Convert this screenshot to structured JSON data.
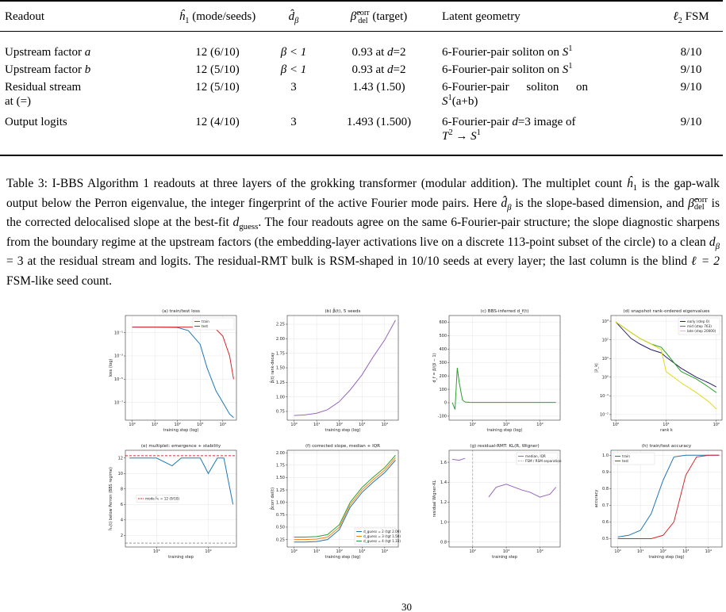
{
  "table": {
    "header": [
      "Readout",
      [
        "ĥ",
        "1",
        " (mode/seeds)"
      ],
      [
        "d̂",
        "β"
      ],
      [
        "β̂",
        "corr",
        "del",
        " (target)"
      ],
      "Latent geometry",
      [
        "ℓ",
        "2",
        " FSM"
      ]
    ],
    "rows": [
      [
        [
          "Upstream factor ",
          "a"
        ],
        "12 (6/10)",
        "β < 1",
        [
          "0.93 at ",
          "d",
          "=2"
        ],
        [
          "6-Fourier-pair soliton on ",
          "S",
          "1"
        ],
        "8/10"
      ],
      [
        [
          "Upstream factor ",
          "b"
        ],
        "12 (5/10)",
        "β < 1",
        [
          "0.93 at ",
          "d",
          "=2"
        ],
        [
          "6-Fourier-pair soliton on ",
          "S",
          "1"
        ],
        "9/10"
      ],
      [
        [
          "Residual stream",
          "at (=)"
        ],
        "12 (5/10)",
        "3",
        "1.43 (1.50)",
        [
          "6-Fourier-pair soliton on",
          "S",
          "1",
          "(a+b)"
        ],
        "9/10"
      ],
      [
        [
          "Output logits"
        ],
        "12 (4/10)",
        "3",
        "1.493 (1.500)",
        [
          "6-Fourier-pair ",
          "d",
          "=3 image of",
          "T",
          "2",
          " → ",
          "S",
          "1"
        ],
        "9/10"
      ]
    ]
  },
  "caption": [
    "Table 3: I-BBS Algorithm 1 readouts at three layers of the grokking transformer (modular addition). The multiplet count ",
    "ĥ",
    "1",
    " is the gap-walk output below the Perron eigenvalue, the integer fingerprint of the active Fourier mode pairs. Here ",
    "d̂",
    "β",
    " is the slope-based dimension, and ",
    "β̂",
    "corr",
    "del",
    " is the corrected delocalised slope at the best-fit ",
    "d",
    "guess",
    ". The four readouts agree on the same 6-Fourier-pair structure; the slope diagnostic sharpens from the boundary regime at the upstream factors (the embedding-layer activations live on a discrete 113-point subset of the circle) to a clean ",
    "d",
    "β",
    " = 3 at the residual stream and logits. The residual-RMT bulk is RSM-shaped in 10/10 seeds at every layer; the last column is the blind ",
    "ℓ = 2",
    " FSM-like seed count."
  ],
  "figure": {
    "panels": [
      {
        "title": "(a) train/test loss",
        "xlabel": "training step (log)",
        "ylabel": "loss (log)",
        "xlog": true,
        "ylog": true,
        "xlim": [
          0.5,
          40000
        ],
        "ylim": [
          3e-09,
          3
        ],
        "xticks": [
          {
            "value": 1,
            "label": "10⁰"
          },
          {
            "value": 10,
            "label": "10¹"
          },
          {
            "value": 100,
            "label": "10²"
          },
          {
            "value": 1000,
            "label": "10³"
          },
          {
            "value": 10000,
            "label": "10⁴"
          }
        ],
        "yticks": [
          {
            "value": 1e-07,
            "label": "10⁻⁷"
          },
          {
            "value": 1e-05,
            "label": "10⁻⁵"
          },
          {
            "value": 0.001,
            "label": "10⁻³"
          },
          {
            "value": 0.1,
            "label": "10⁻¹"
          }
        ],
        "legend": "upper right",
        "series": [
          {
            "name": "train",
            "color": "#1f77b4",
            "x": [
              1,
              10,
              100,
              300,
              1000,
              2000,
              5000,
              10000,
              20000,
              30000
            ],
            "values": [
              0.3,
              0.3,
              0.28,
              0.15,
              0.01,
              0.0001,
              1e-06,
              1e-07,
              1e-08,
              5e-09
            ]
          },
          {
            "name": "test",
            "color": "#d62728",
            "x": [
              1,
              10,
              100,
              300,
              1000,
              2000,
              5000,
              10000,
              20000,
              30000
            ],
            "values": [
              0.3,
              0.3,
              0.3,
              0.3,
              0.3,
              0.28,
              0.2,
              0.05,
              0.001,
              1e-05
            ]
          }
        ]
      },
      {
        "title": "(b) β̂(t), 5 seeds",
        "xlabel": "training step (log)",
        "ylabel": "β̂(t) rank-decay",
        "xlog": true,
        "ylog": false,
        "xlim": [
          0.5,
          40000
        ],
        "ylim": [
          0.6,
          2.4
        ],
        "xticks": [
          {
            "value": 1,
            "label": "10⁰"
          },
          {
            "value": 10,
            "label": "10¹"
          },
          {
            "value": 100,
            "label": "10²"
          },
          {
            "value": 1000,
            "label": "10³"
          },
          {
            "value": 10000,
            "label": "10⁴"
          }
        ],
        "yticks": [
          0.75,
          {
            "value": 1,
            "label": "1.00"
          },
          1.25,
          {
            "value": 1.5,
            "label": "1.50"
          },
          1.75,
          {
            "value": 2,
            "label": "2.00"
          },
          2.25
        ],
        "series": [
          {
            "color": "#9467bd",
            "x": [
              1,
              3,
              10,
              30,
              100,
              300,
              1000,
              3000,
              10000,
              30000
            ],
            "values": [
              0.68,
              0.69,
              0.72,
              0.78,
              0.92,
              1.12,
              1.38,
              1.68,
              1.98,
              2.32
            ]
          }
        ]
      },
      {
        "title": "(c) BBS-inferred d_f(t)",
        "xlabel": "training step (log)",
        "ylabel": "d_f = β/(β − 1)",
        "xlog": true,
        "ylog": false,
        "xlim": [
          20,
          40000
        ],
        "ylim": [
          -130,
          650
        ],
        "xticks": [
          {
            "value": 100,
            "label": "10²"
          },
          {
            "value": 1000,
            "label": "10³"
          },
          {
            "value": 10000,
            "label": "10⁴"
          }
        ],
        "yticks": [
          -100,
          0,
          100,
          200,
          300,
          400,
          500,
          600
        ],
        "series": [
          {
            "color": "#2ca02c",
            "x": [
              25,
              30,
              35,
              40,
              50,
              60,
              80,
              100,
              300,
              1000,
              10000,
              30000
            ],
            "values": [
              0,
              -50,
              260,
              150,
              20,
              5,
              3,
              2,
              2,
              2,
              2,
              2
            ]
          }
        ]
      },
      {
        "title": "(d) snapshot rank-ordered eigenvalues",
        "xlabel": "rank k",
        "ylabel": "|λ_k|",
        "xlog": true,
        "ylog": true,
        "xlim": [
          0.8,
          130
        ],
        "ylim": [
          0.005,
          2000
        ],
        "xticks": [
          {
            "value": 1,
            "label": "10⁰"
          },
          {
            "value": 10,
            "label": "10¹"
          },
          {
            "value": 100,
            "label": "10²"
          }
        ],
        "yticks": [
          {
            "value": 0.01,
            "label": "10⁻²"
          },
          {
            "value": 0.1,
            "label": "10⁻¹"
          },
          {
            "value": 1,
            "label": "10⁰"
          },
          {
            "value": 10,
            "label": "10¹"
          },
          {
            "value": 100,
            "label": "10²"
          },
          {
            "value": 1000,
            "label": "10³"
          }
        ],
        "legend": "upper right",
        "series": [
          {
            "name": "early (step 0)",
            "color": "#2b1f6b",
            "x": [
              1,
              2,
              3,
              5,
              8,
              10,
              20,
              40,
              70,
              100
            ],
            "values": [
              900,
              120,
              60,
              30,
              20,
              12,
              3,
              1,
              0.5,
              0.3
            ]
          },
          {
            "name": "mid (step 763)",
            "color": "#2ca02c",
            "x": [
              1,
              2,
              3,
              5,
              8,
              10,
              20,
              40,
              70,
              100
            ],
            "values": [
              900,
              250,
              120,
              60,
              40,
              20,
              2,
              0.8,
              0.3,
              0.15
            ]
          },
          {
            "name": "late (step 20000)",
            "color": "#e5d81a",
            "x": [
              1,
              2,
              3,
              5,
              8,
              10,
              20,
              40,
              70,
              100
            ],
            "values": [
              900,
              250,
              120,
              60,
              30,
              2,
              0.5,
              0.15,
              0.05,
              0.02
            ]
          }
        ]
      },
      {
        "title": "(e) multiplet: emergence + stability",
        "xlabel": "training step",
        "ylabel": "ĥ₁(t) below Perron (BBS regime)",
        "xlog": true,
        "ylog": false,
        "xlim": [
          250,
          35000
        ],
        "ylim": [
          0.5,
          13
        ],
        "xticks": [
          {
            "value": 1000,
            "label": "10³"
          },
          {
            "value": 10000,
            "label": "10⁴"
          }
        ],
        "yticks": [
          2,
          4,
          6,
          8,
          10,
          12
        ],
        "legend": "center left",
        "series": [
          {
            "color": "#1f77b4",
            "x": [
              300,
              1000,
              2000,
              3000,
              5000,
              7000,
              10000,
              15000,
              20000,
              30000
            ],
            "values": [
              12,
              12,
              11,
              12,
              12,
              12,
              10,
              12,
              12,
              6
            ]
          },
          {
            "name": "mode ĥ₁ = 12 (9/10)",
            "color": "#d62728",
            "dash": true,
            "x": [
              250,
              35000
            ],
            "values": [
              12.3,
              12.3
            ]
          },
          {
            "color": "#999999",
            "dash": true,
            "x": [
              250,
              35000
            ],
            "values": [
              1,
              1
            ]
          }
        ]
      },
      {
        "title": "(f) corrected slope, median + IQR",
        "xlabel": "training step (log)",
        "ylabel": "β̂corr del(t)",
        "xlog": true,
        "ylog": false,
        "xlim": [
          0.5,
          40000
        ],
        "ylim": [
          0.1,
          2.05
        ],
        "xticks": [
          {
            "value": 1,
            "label": "10⁰"
          },
          {
            "value": 10,
            "label": "10¹"
          },
          {
            "value": 100,
            "label": "10²"
          },
          {
            "value": 1000,
            "label": "10³"
          },
          {
            "value": 10000,
            "label": "10⁴"
          }
        ],
        "yticks": [
          0.25,
          {
            "value": 0.5,
            "label": "0.50"
          },
          0.75,
          {
            "value": 1,
            "label": "1.00"
          },
          1.25,
          {
            "value": 1.5,
            "label": "1.50"
          },
          1.75,
          {
            "value": 2,
            "label": "2.00"
          }
        ],
        "legend": "lower right",
        "series": [
          {
            "name": "d_guess = 2 (tgt 2.00)",
            "color": "#1f77b4",
            "x": [
              1,
              3,
              10,
              30,
              100,
              300,
              1000,
              3000,
              10000,
              30000
            ],
            "values": [
              0.2,
              0.2,
              0.21,
              0.25,
              0.45,
              0.9,
              1.2,
              1.4,
              1.6,
              1.85
            ]
          },
          {
            "name": "d_guess = 3 (tgt 1.50)",
            "color": "#ff7f0e",
            "x": [
              1,
              3,
              10,
              30,
              100,
              300,
              1000,
              3000,
              10000,
              30000
            ],
            "values": [
              0.25,
              0.25,
              0.26,
              0.3,
              0.5,
              0.95,
              1.25,
              1.45,
              1.65,
              1.9
            ]
          },
          {
            "name": "d_guess = 4 (tgt 1.33)",
            "color": "#2ca02c",
            "x": [
              1,
              3,
              10,
              30,
              100,
              300,
              1000,
              3000,
              10000,
              30000
            ],
            "values": [
              0.3,
              0.3,
              0.31,
              0.35,
              0.55,
              1.0,
              1.3,
              1.5,
              1.7,
              1.95
            ]
          }
        ]
      },
      {
        "title": "(g) residual-RMT: KL(R, Wigner)",
        "xlabel": "training step",
        "ylabel": "residual Wigner-KL",
        "xlog": true,
        "ylog": false,
        "xlim": [
          20,
          40000
        ],
        "ylim": [
          0.75,
          1.72
        ],
        "xticks": [
          {
            "value": 100,
            "label": "10²"
          },
          {
            "value": 1000,
            "label": "10³"
          },
          {
            "value": 10000,
            "label": "10⁴"
          }
        ],
        "yticks": [
          0.8,
          {
            "value": 1,
            "label": "1.0"
          },
          1.2,
          1.4,
          1.6
        ],
        "legend": "upper right",
        "series": [
          {
            "name": "median, IQR",
            "color": "#9467bd",
            "x": [
              25,
              40,
              60,
              200,
              300,
              500,
              1000,
              3000,
              5000,
              10000,
              20000,
              30000
            ],
            "values": [
              1.63,
              1.62,
              1.64,
              null,
              1.25,
              1.35,
              1.38,
              1.32,
              1.3,
              1.25,
              1.28,
              1.35
            ]
          },
          {
            "name": "FSM / RSM separation",
            "color": "#bbbbbb",
            "dash": true,
            "x": [
              100,
              100
            ],
            "values": [
              0.75,
              1.72
            ]
          }
        ]
      },
      {
        "title": "(h) train/test accuracy",
        "xlabel": "training step (log)",
        "ylabel": "accuracy",
        "xlog": true,
        "ylog": false,
        "xlim": [
          0.5,
          40000
        ],
        "ylim": [
          0.45,
          1.03
        ],
        "xticks": [
          {
            "value": 1,
            "label": "10⁰"
          },
          {
            "value": 10,
            "label": "10¹"
          },
          {
            "value": 100,
            "label": "10²"
          },
          {
            "value": 1000,
            "label": "10³"
          },
          {
            "value": 10000,
            "label": "10⁴"
          }
        ],
        "yticks": [
          0.5,
          0.6,
          0.7,
          0.8,
          0.9,
          {
            "value": 1,
            "label": "1.0"
          }
        ],
        "legend": "upper left",
        "series": [
          {
            "name": "train",
            "color": "#1f77b4",
            "x": [
              1,
              3,
              10,
              30,
              100,
              300,
              1000,
              3000,
              10000,
              30000
            ],
            "values": [
              0.51,
              0.52,
              0.55,
              0.65,
              0.85,
              0.99,
              1,
              1,
              1,
              1
            ]
          },
          {
            "name": "test",
            "color": "#d62728",
            "x": [
              1,
              3,
              10,
              30,
              100,
              300,
              1000,
              3000,
              10000,
              30000
            ],
            "values": [
              0.5,
              0.5,
              0.5,
              0.5,
              0.52,
              0.6,
              0.88,
              0.99,
              1,
              1
            ]
          }
        ]
      }
    ]
  },
  "page_number": "30"
}
